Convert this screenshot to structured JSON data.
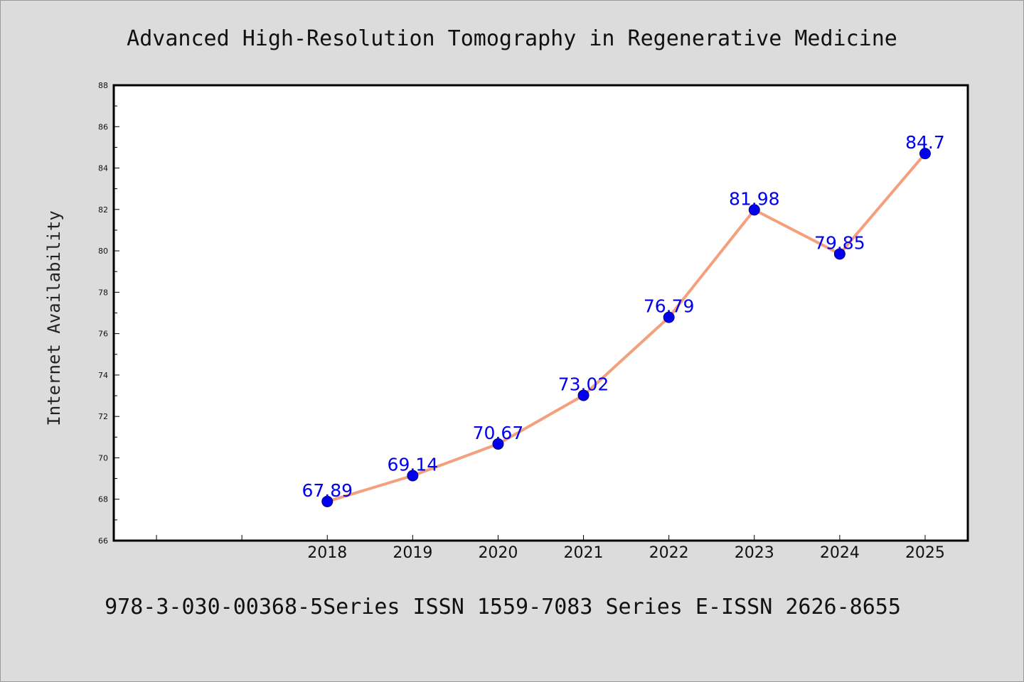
{
  "chart_data": {
    "type": "line",
    "title": "Advanced High-Resolution Tomography in Regenerative Medicine",
    "xlabel": "",
    "ylabel": "Internet Availability",
    "x": [
      "2018",
      "2019",
      "2020",
      "2021",
      "2022",
      "2023",
      "2024",
      "2025"
    ],
    "series": [
      {
        "values": [
          67.89,
          69.14,
          70.67,
          73.02,
          76.79,
          81.98,
          79.85,
          84.7
        ],
        "data_labels": [
          "67.89",
          "69.14",
          "70.67",
          "73.02",
          "76.79",
          "81.98",
          "79.85",
          "84.7"
        ],
        "line_color": "#f4a07c",
        "marker_color": "#0000ee"
      }
    ],
    "ylim": [
      66,
      88
    ],
    "yticks": [
      66,
      68,
      70,
      72,
      74,
      76,
      78,
      80,
      82,
      84,
      86,
      88
    ],
    "ytick_labels": [
      "66",
      "68",
      "70",
      "72",
      "74",
      "76",
      "78",
      "80",
      "82",
      "84",
      "86",
      "88"
    ],
    "xlim": [
      2015.5,
      2025.5
    ],
    "grid": false,
    "legend": "none"
  },
  "footer": {
    "text": "978-3-030-00368-5Series ISSN 1559-7083 Series E-ISSN 2626-8655"
  },
  "colors": {
    "background": "#dcdcdc",
    "plot_background": "#ffffff",
    "axis": "#000000",
    "line": "#f4a07c",
    "marker": "#0000ee",
    "data_label": "#0000ee"
  }
}
